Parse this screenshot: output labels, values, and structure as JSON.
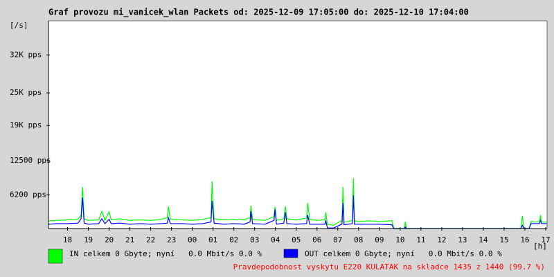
{
  "chart_data": {
    "type": "line",
    "title": "Graf provozu mi_vanicek_wlan Packets od: 2025-12-09 17:05:00 do: 2025-12-10 17:04:00",
    "y_label": "[/s]",
    "x_label": "[h]",
    "footer": "Pravdepodobnost vyskytu E220 KULATAK na skladce 1435 z 1440 (99.7 %)",
    "xlim": [
      17.083,
      41.067
    ],
    "xticks": [
      18,
      19,
      20,
      21,
      22,
      23,
      {
        "value": 24,
        "label": "00"
      },
      {
        "value": 25,
        "label": "01"
      },
      {
        "value": 26,
        "label": "02"
      },
      {
        "value": 27,
        "label": "03"
      },
      {
        "value": 28,
        "label": "04"
      },
      {
        "value": 29,
        "label": "05"
      },
      {
        "value": 30,
        "label": "06"
      },
      {
        "value": 31,
        "label": "07"
      },
      {
        "value": 32,
        "label": "08"
      },
      {
        "value": 33,
        "label": "09"
      },
      {
        "value": 34,
        "label": "10"
      },
      {
        "value": 35,
        "label": "11"
      },
      {
        "value": 36,
        "label": "12"
      },
      {
        "value": 37,
        "label": "13"
      },
      {
        "value": 38,
        "label": "14"
      },
      {
        "value": 39,
        "label": "15"
      },
      {
        "value": 40,
        "label": "16"
      },
      {
        "value": 41,
        "label": "17"
      }
    ],
    "ylim": [
      0,
      38300
    ],
    "yticks": [
      {
        "value": 6200,
        "label": "6200 pps"
      },
      {
        "value": 12500,
        "label": "12500 pps"
      },
      {
        "value": 19000,
        "label": "19K pps"
      },
      {
        "value": 25000,
        "label": "25K pps"
      },
      {
        "value": 32000,
        "label": "32K pps"
      }
    ],
    "x": [
      17.1,
      17.5,
      18.0,
      18.5,
      18.65,
      18.72,
      18.8,
      19.0,
      19.5,
      19.65,
      19.8,
      20.0,
      20.1,
      20.5,
      21.0,
      21.5,
      22.0,
      22.5,
      22.8,
      22.85,
      22.95,
      23.5,
      24.0,
      24.5,
      24.9,
      24.95,
      25.05,
      25.5,
      26.0,
      26.5,
      26.78,
      26.82,
      26.9,
      27.5,
      27.93,
      27.98,
      28.05,
      28.4,
      28.48,
      28.55,
      29.0,
      29.5,
      29.55,
      29.65,
      30.0,
      30.38,
      30.42,
      30.5,
      30.8,
      31.2,
      31.25,
      31.3,
      31.5,
      31.7,
      31.75,
      31.8,
      32.0,
      32.5,
      33.0,
      33.5,
      33.6,
      33.7,
      34.2,
      34.25,
      34.3,
      35.0,
      36.0,
      37.0,
      38.0,
      39.0,
      39.8,
      39.88,
      39.95,
      40.2,
      40.3,
      40.5,
      40.7,
      40.75,
      40.8,
      41.05
    ],
    "series": [
      {
        "name": "IN celkem 0 Gbyte; nyní   0.0 Mbit/s 0.0 %",
        "color": "#00ff00",
        "values": [
          1400,
          1500,
          1600,
          1700,
          2500,
          7650,
          1800,
          1500,
          1600,
          3200,
          1500,
          3100,
          1600,
          1800,
          1500,
          1600,
          1500,
          1700,
          2000,
          4100,
          1700,
          1600,
          1500,
          1700,
          2000,
          8700,
          1800,
          1600,
          1700,
          1600,
          2000,
          4200,
          1700,
          1500,
          2200,
          4000,
          1500,
          1800,
          4100,
          1800,
          1600,
          1900,
          4700,
          1700,
          1500,
          1600,
          3000,
          800,
          600,
          1500,
          7650,
          1200,
          1300,
          1500,
          9300,
          1400,
          1300,
          1400,
          1300,
          1400,
          1500,
          0,
          0,
          1300,
          0,
          0,
          0,
          0,
          0,
          0,
          0,
          2300,
          0,
          0,
          1300,
          1200,
          1300,
          2500,
          1200,
          1200
        ]
      },
      {
        "name": "OUT celkem 0 Gbyte; nyní   0.0 Mbit/s 0.0 %",
        "color": "#0000ff",
        "values": [
          800,
          900,
          900,
          1000,
          1800,
          5700,
          1000,
          800,
          900,
          1800,
          900,
          1700,
          900,
          1000,
          800,
          900,
          800,
          900,
          1000,
          2000,
          900,
          900,
          800,
          900,
          1200,
          5100,
          1000,
          800,
          900,
          800,
          1200,
          3200,
          900,
          800,
          1500,
          3500,
          800,
          1000,
          3000,
          900,
          800,
          900,
          2500,
          800,
          800,
          800,
          1500,
          100,
          100,
          800,
          4700,
          700,
          800,
          900,
          6100,
          800,
          800,
          800,
          800,
          700,
          700,
          0,
          0,
          300,
          0,
          0,
          0,
          0,
          0,
          0,
          0,
          600,
          0,
          0,
          900,
          900,
          900,
          1500,
          900,
          900
        ]
      }
    ]
  }
}
